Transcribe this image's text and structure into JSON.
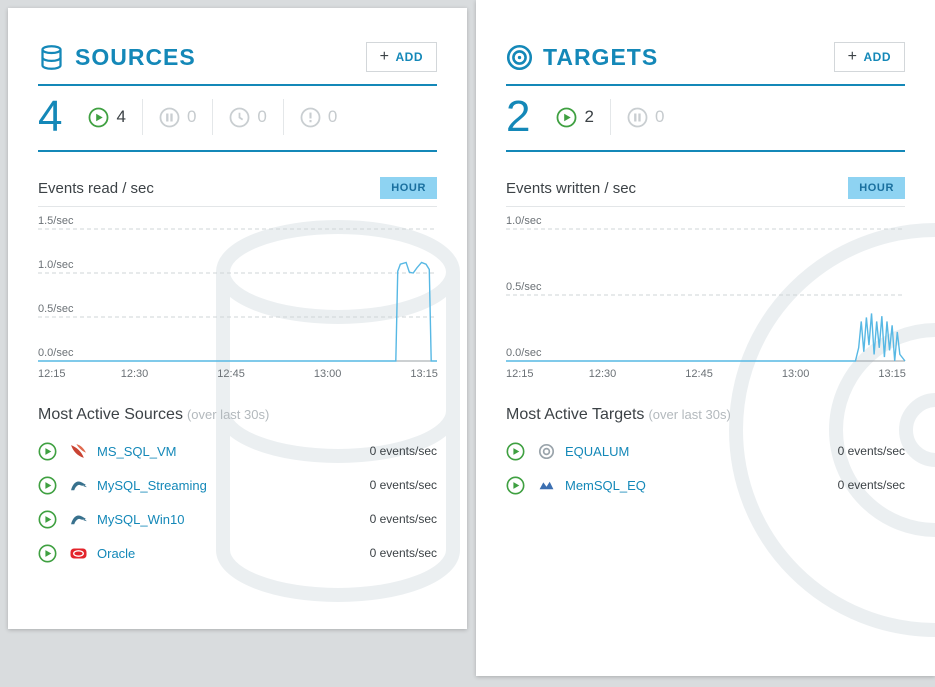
{
  "accent_color": "#1488b8",
  "sources_panel": {
    "title": "SOURCES",
    "plus": "+",
    "add_label": "ADD",
    "total": "4",
    "stats": [
      {
        "icon": "play-icon",
        "value": "4"
      },
      {
        "icon": "pause-icon",
        "value": "0"
      },
      {
        "icon": "clock-icon",
        "value": "0"
      },
      {
        "icon": "error-icon",
        "value": "0"
      }
    ],
    "chart_label": "Events read / sec",
    "range_button": "HOUR",
    "most_active_title": "Most Active Sources",
    "most_active_suffix": "(over last 30s)",
    "items": [
      {
        "icon": "mssql-icon",
        "name": "MS_SQL_VM",
        "rate": "0 events/sec"
      },
      {
        "icon": "mysql-icon",
        "name": "MySQL_Streaming",
        "rate": "0 events/sec"
      },
      {
        "icon": "mysql-icon",
        "name": "MySQL_Win10",
        "rate": "0 events/sec"
      },
      {
        "icon": "oracle-icon",
        "name": "Oracle",
        "rate": "0 events/sec"
      }
    ]
  },
  "targets_panel": {
    "title": "TARGETS",
    "plus": "+",
    "add_label": "ADD",
    "total": "2",
    "stats": [
      {
        "icon": "play-icon",
        "value": "2"
      },
      {
        "icon": "pause-icon",
        "value": "0"
      }
    ],
    "chart_label": "Events written / sec",
    "range_button": "HOUR",
    "most_active_title": "Most Active Targets",
    "most_active_suffix": "(over last 30s)",
    "items": [
      {
        "icon": "equalum-icon",
        "name": "EQUALUM",
        "rate": "0 events/sec"
      },
      {
        "icon": "memsql-icon",
        "name": "MemSQL_EQ",
        "rate": "0 events/sec"
      }
    ]
  },
  "chart_data": [
    {
      "type": "line",
      "panel": "sources",
      "title": "Events read / sec",
      "range": "HOUR",
      "ylim": [
        0,
        1.5
      ],
      "x_max": 62,
      "grid": "dashed",
      "y_ticks": [
        {
          "value": 0,
          "label": "0.0/sec"
        },
        {
          "value": 0.5,
          "label": "0.5/sec"
        },
        {
          "value": 1.0,
          "label": "1.0/sec"
        },
        {
          "value": 1.5,
          "label": "1.5/sec"
        }
      ],
      "x_ticks": [
        {
          "value": 0,
          "label": "12:15"
        },
        {
          "value": 15,
          "label": "12:30"
        },
        {
          "value": 30,
          "label": "12:45"
        },
        {
          "value": 45,
          "label": "13:00"
        },
        {
          "value": 60,
          "label": "13:15"
        }
      ],
      "series": [
        {
          "name": "events_read_per_sec",
          "x": [
            0,
            55.6,
            55.9,
            56.3,
            57.2,
            57.7,
            58.3,
            58.9,
            59.6,
            60.3,
            60.8,
            61.1,
            62
          ],
          "y": [
            0,
            0,
            1.02,
            1.1,
            1.12,
            1.01,
            1.0,
            1.06,
            1.12,
            1.1,
            1.04,
            0,
            0
          ]
        }
      ]
    },
    {
      "type": "line",
      "panel": "targets",
      "title": "Events written / sec",
      "range": "HOUR",
      "ylim": [
        0,
        1.0
      ],
      "x_max": 62,
      "grid": "dashed",
      "y_ticks": [
        {
          "value": 0,
          "label": "0.0/sec"
        },
        {
          "value": 0.5,
          "label": "0.5/sec"
        },
        {
          "value": 1.0,
          "label": "1.0/sec"
        }
      ],
      "x_ticks": [
        {
          "value": 0,
          "label": "12:15"
        },
        {
          "value": 15,
          "label": "12:30"
        },
        {
          "value": 30,
          "label": "12:45"
        },
        {
          "value": 45,
          "label": "13:00"
        },
        {
          "value": 60,
          "label": "13:15"
        }
      ],
      "series": [
        {
          "name": "events_written_per_sec",
          "x": [
            0,
            54.3,
            54.8,
            55.2,
            55.6,
            56.0,
            56.4,
            56.8,
            57.2,
            57.6,
            58.0,
            58.4,
            58.8,
            59.2,
            59.6,
            60.0,
            60.4,
            60.8,
            61.2,
            62
          ],
          "y": [
            0,
            0,
            0.1,
            0.3,
            0.07,
            0.33,
            0.12,
            0.36,
            0.05,
            0.3,
            0.1,
            0.34,
            0.03,
            0.3,
            0.08,
            0.27,
            0.0,
            0.22,
            0.05,
            0
          ]
        }
      ]
    }
  ]
}
